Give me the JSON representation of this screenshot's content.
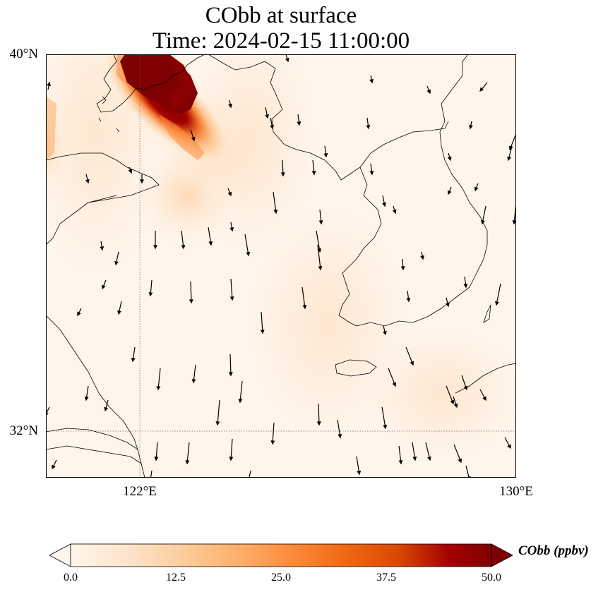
{
  "title": {
    "line1": "CObb at surface",
    "line2": "Time: 2024-02-15 11:00:00"
  },
  "map": {
    "lon_range": [
      119.5,
      130
    ],
    "lat_range": [
      31,
      40
    ],
    "lat_ticks": [
      {
        "value": 40,
        "label": "40°N"
      },
      {
        "value": 32,
        "label": "32°N"
      }
    ],
    "lon_ticks": [
      {
        "value": 122,
        "label": "122°E"
      },
      {
        "value": 130,
        "label": "130°E"
      }
    ],
    "gridlines": "dotted at 122°E and 32°N",
    "variable": "CObb",
    "units": "ppbv",
    "plume": "high concentration (above 50 ppbv) in the northwest corner near 122–123°E, 38.5–40°N, fading southeastward",
    "wind_vectors": "mostly northerly (pointing south)"
  },
  "colorbar": {
    "label": "CObb (ppbv)",
    "min": 0,
    "max": 50,
    "ticks": [
      "0.0",
      "12.5",
      "25.0",
      "37.5",
      "50.0"
    ],
    "colormap": [
      "#fff5eb",
      "#fee6ce",
      "#fdd0a2",
      "#fdae6b",
      "#fd8d3c",
      "#f16913",
      "#d94801",
      "#a50000",
      "#7f0000"
    ],
    "extend": "both"
  }
}
